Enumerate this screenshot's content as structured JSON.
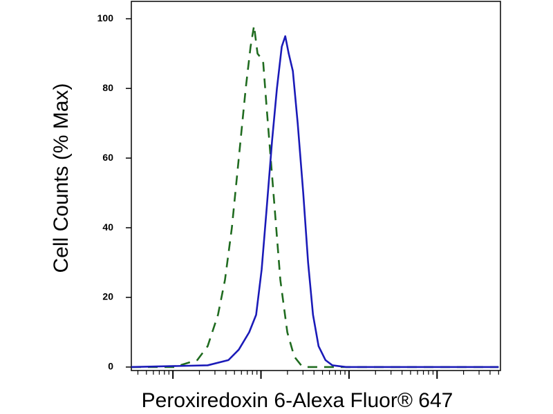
{
  "chart_data": {
    "type": "line",
    "xlabel": "Peroxiredoxin 6-Alexa Fluor® 647",
    "ylabel": "Cell Counts (% Max)",
    "xscale": "log",
    "xlim": [
      3.37,
      52500
    ],
    "xticks": [
      10,
      100,
      1000,
      10000
    ],
    "xtick_labels": false,
    "xminor_ticks": [
      4,
      5,
      6,
      7,
      8,
      9,
      20,
      30,
      40,
      50,
      60,
      70,
      80,
      90,
      200,
      300,
      400,
      500,
      600,
      700,
      800,
      900,
      2000,
      3000,
      4000,
      5000,
      6000,
      7000,
      8000,
      9000,
      20000,
      30000,
      40000,
      50000
    ],
    "ylim": [
      -1,
      105
    ],
    "yticks": [
      0,
      20,
      40,
      60,
      80,
      100
    ],
    "grid": false,
    "series": [
      {
        "color": "#1f6b1f",
        "dash": true,
        "x": [
          3.37,
          10.9,
          12.0,
          18.9,
          24.8,
          32.5,
          39.0,
          46.7,
          56.0,
          67.1,
          76.2,
          83.4,
          91.4,
          105.6,
          115.6,
          138.6,
          166.0,
          199.1,
          238.8,
          286.4,
          313,
          50000
        ],
        "values": [
          0,
          0,
          0.5,
          2,
          6,
          15,
          25,
          40,
          60,
          80,
          92,
          98,
          90,
          88,
          75,
          50,
          25,
          10,
          3,
          0.5,
          0,
          0
        ]
      },
      {
        "color": "#1a1ab8",
        "dash": false,
        "x": [
          3.37,
          24.8,
          42.7,
          56.0,
          73.5,
          88.1,
          101.8,
          115.6,
          133.7,
          151.8,
          172.2,
          188.8,
          206.6,
          230.2,
          261.3,
          302,
          343,
          390,
          451,
          540,
          647,
          931,
          50000
        ],
        "values": [
          0,
          0.5,
          2,
          5,
          10,
          15,
          28,
          45,
          65,
          80,
          92,
          95,
          90,
          85,
          70,
          50,
          30,
          15,
          6,
          2,
          0.5,
          0,
          0
        ]
      }
    ]
  }
}
